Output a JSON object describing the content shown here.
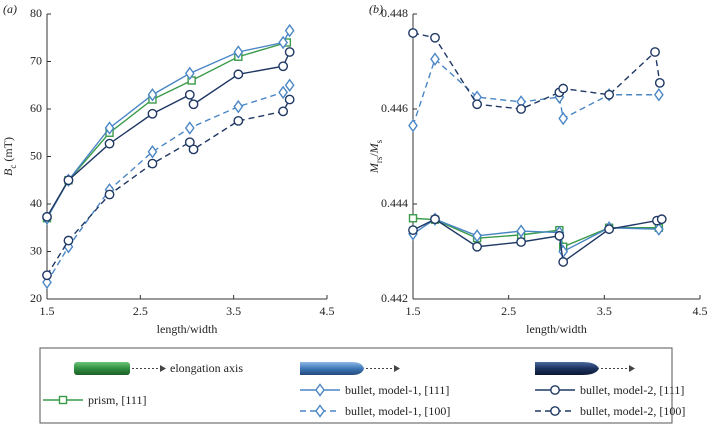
{
  "chart_data": [
    {
      "type": "line",
      "panel": "(a)",
      "xlabel": "length/width",
      "ylabel": [
        {
          "text": "B",
          "style": "italic"
        },
        {
          "text": "c",
          "style": "sub"
        },
        {
          "text": " (mT)",
          "style": "normal"
        }
      ],
      "xlim": [
        1.5,
        4.5
      ],
      "xticks": [
        1.5,
        2.5,
        3.5,
        4.5
      ],
      "ylim": [
        20,
        80
      ],
      "yticks": [
        20,
        30,
        40,
        50,
        60,
        70,
        80
      ],
      "series": [
        {
          "name": "prism, [111]",
          "color": "#3a9b4a",
          "marker": "square",
          "dash": false,
          "x": [
            1.5,
            1.73,
            2.17,
            2.63,
            3.05,
            3.55,
            4.07
          ],
          "values": [
            37,
            45,
            55,
            62,
            66,
            71,
            74
          ]
        },
        {
          "name": "bullet, model-1, [111]",
          "color": "#4a86c5",
          "marker": "diamond",
          "dash": false,
          "x": [
            1.5,
            1.73,
            2.17,
            2.63,
            3.03,
            3.55,
            4.03,
            4.1
          ],
          "values": [
            37,
            45,
            56,
            63,
            67.5,
            72,
            74,
            76.5
          ]
        },
        {
          "name": "bullet, model-1, [100]",
          "color": "#4a86c5",
          "marker": "diamond",
          "dash": true,
          "x": [
            1.5,
            1.73,
            2.17,
            2.63,
            3.03,
            3.55,
            4.03,
            4.1
          ],
          "values": [
            23.5,
            31,
            43,
            51,
            56,
            60.5,
            63.5,
            65
          ]
        },
        {
          "name": "bullet, model-2, [111]",
          "color": "#1f3864",
          "marker": "circle",
          "dash": false,
          "x": [
            1.5,
            1.73,
            2.17,
            2.63,
            3.03,
            3.07,
            3.55,
            4.03,
            4.1
          ],
          "values": [
            37.3,
            45,
            52.7,
            59,
            63,
            61,
            67.3,
            69,
            72
          ]
        },
        {
          "name": "bullet, model-2, [100]",
          "color": "#1f3864",
          "marker": "circle",
          "dash": true,
          "x": [
            1.5,
            1.73,
            2.17,
            2.63,
            3.03,
            3.07,
            3.55,
            4.03,
            4.1
          ],
          "values": [
            25,
            32.3,
            42,
            48.5,
            53,
            51.5,
            57.5,
            59.5,
            62
          ]
        }
      ]
    },
    {
      "type": "line",
      "panel": "(b)",
      "xlabel": "length/width",
      "ylabel": [
        {
          "text": "M",
          "style": "italic"
        },
        {
          "text": "rs",
          "style": "sub"
        },
        {
          "text": "/",
          "style": "normal"
        },
        {
          "text": "M",
          "style": "italic"
        },
        {
          "text": "s",
          "style": "sub"
        }
      ],
      "xlim": [
        1.5,
        4.5
      ],
      "xticks": [
        1.5,
        2.5,
        3.5,
        4.5
      ],
      "ylim": [
        0.442,
        0.448
      ],
      "yticks": [
        0.442,
        0.444,
        0.446,
        0.448
      ],
      "series": [
        {
          "color": "#3a9b4a",
          "marker": "square",
          "dash": false,
          "x": [
            1.5,
            1.73,
            2.17,
            2.63,
            3.03,
            3.07,
            3.55,
            4.07
          ],
          "values": [
            0.4437,
            0.44367,
            0.44328,
            0.44335,
            0.44345,
            0.4431,
            0.4435,
            0.4435
          ]
        },
        {
          "color": "#4a86c5",
          "marker": "diamond",
          "dash": false,
          "x": [
            1.5,
            1.73,
            2.17,
            2.63,
            3.03,
            3.07,
            3.55,
            4.07
          ],
          "values": [
            0.44337,
            0.44368,
            0.44333,
            0.44343,
            0.4434,
            0.443,
            0.4435,
            0.44347
          ]
        },
        {
          "color": "#4a86c5",
          "marker": "diamond",
          "dash": true,
          "x": [
            1.5,
            1.73,
            2.17,
            2.63,
            3.03,
            3.07,
            3.55,
            4.07
          ],
          "values": [
            0.44565,
            0.44705,
            0.44625,
            0.44615,
            0.44625,
            0.4458,
            0.4463,
            0.4463
          ]
        },
        {
          "color": "#1f3864",
          "marker": "circle",
          "dash": false,
          "x": [
            1.5,
            1.73,
            2.17,
            2.63,
            3.03,
            3.07,
            3.55,
            4.05,
            4.1
          ],
          "values": [
            0.44345,
            0.44368,
            0.4431,
            0.4432,
            0.44333,
            0.44278,
            0.44347,
            0.44365,
            0.44368
          ]
        },
        {
          "color": "#1f3864",
          "marker": "circle",
          "dash": true,
          "x": [
            1.5,
            1.73,
            2.17,
            2.63,
            3.03,
            3.07,
            3.55,
            4.03,
            4.08
          ],
          "values": [
            0.4476,
            0.4475,
            0.4461,
            0.446,
            0.44635,
            0.44643,
            0.4463,
            0.4472,
            0.44655
          ]
        }
      ]
    }
  ],
  "legend_note": "elongation axis"
}
